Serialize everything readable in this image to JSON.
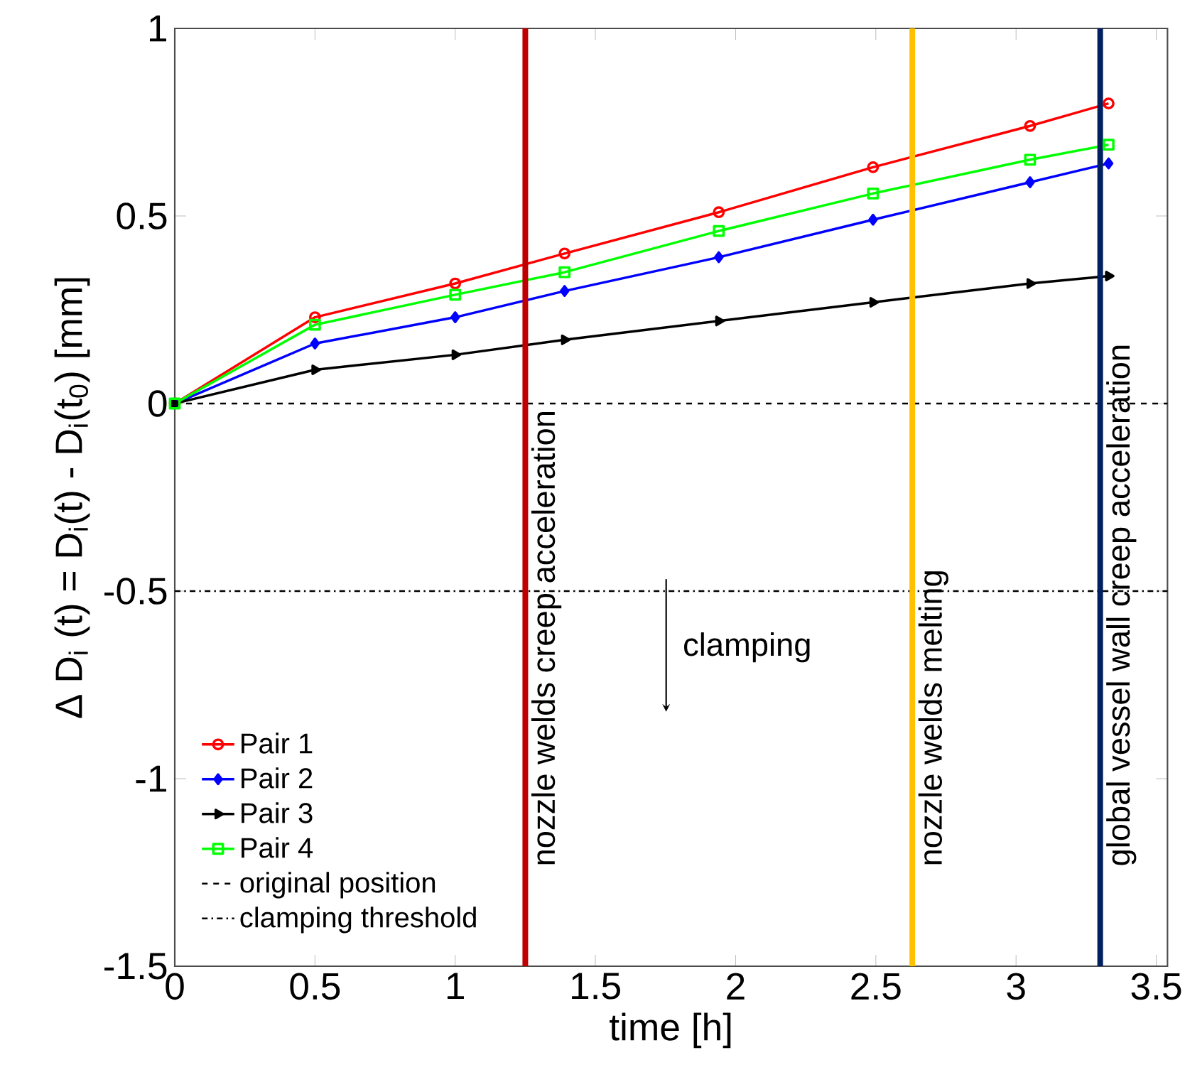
{
  "chart_data": {
    "type": "line",
    "xlabel": "time [h]",
    "ylabel": "Δ D$_{i}$ (t) = D$_{i}$(t) - D$_{i}$(t$_{0}$)   [mm]",
    "x": [
      0,
      0.5,
      1,
      1.39,
      1.94,
      2.49,
      3.05,
      3.33
    ],
    "series": [
      {
        "name": "Pair 1",
        "color": "#ff0000",
        "marker": "circle",
        "values": [
          0,
          0.23,
          0.32,
          0.4,
          0.51,
          0.63,
          0.74,
          0.8
        ]
      },
      {
        "name": "Pair 2",
        "color": "#0000ff",
        "marker": "diamond",
        "values": [
          0,
          0.16,
          0.23,
          0.3,
          0.39,
          0.49,
          0.59,
          0.64
        ]
      },
      {
        "name": "Pair 3",
        "color": "#000000",
        "marker": "triangle",
        "values": [
          0,
          0.09,
          0.13,
          0.17,
          0.22,
          0.27,
          0.32,
          0.34
        ]
      },
      {
        "name": "Pair 4",
        "color": "#00ff00",
        "marker": "square",
        "values": [
          0,
          0.21,
          0.29,
          0.35,
          0.46,
          0.56,
          0.65,
          0.69
        ]
      }
    ],
    "xlim": [
      0,
      3.54
    ],
    "ylim": [
      -1.5,
      1
    ],
    "xticks": [
      0,
      0.5,
      1,
      1.5,
      2,
      2.5,
      3,
      3.5
    ],
    "yticks": [
      -1.5,
      -1,
      -0.5,
      0,
      0.5,
      1
    ],
    "ref_lines": [
      {
        "axis": "y",
        "value": 0,
        "label": "original position",
        "color": "#000000",
        "line_style": "dashed"
      },
      {
        "axis": "y",
        "value": -0.5,
        "label": "clamping threshold",
        "color": "#000000",
        "line_style": "dashdot"
      },
      {
        "axis": "x",
        "value": 1.25,
        "label": "nozzle welds creep acceleration",
        "color": "#c00000"
      },
      {
        "axis": "x",
        "value": 2.63,
        "label": "nozzle welds melting",
        "color": "#ffc000"
      },
      {
        "axis": "x",
        "value": 3.3,
        "label": "global vessel wall creep acceleration",
        "color": "#002060"
      }
    ],
    "annotations": [
      "clamping"
    ],
    "legend": "bottom left",
    "grid": false
  }
}
